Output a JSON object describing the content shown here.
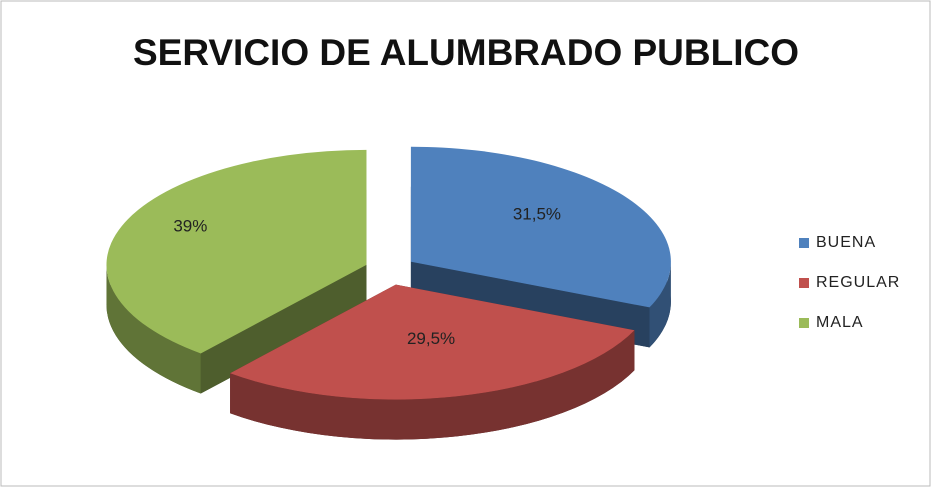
{
  "chart_data": {
    "type": "pie",
    "title": "SERVICIO DE ALUMBRADO PUBLICO",
    "categories": [
      "BUENA",
      "REGULAR",
      "MALA"
    ],
    "values": [
      31.5,
      29.5,
      39
    ],
    "value_labels": [
      "31,5%",
      "29,5%",
      "39%"
    ],
    "colors": [
      "#4f81bd",
      "#c0504d",
      "#9bbb59"
    ],
    "legend": "right"
  }
}
